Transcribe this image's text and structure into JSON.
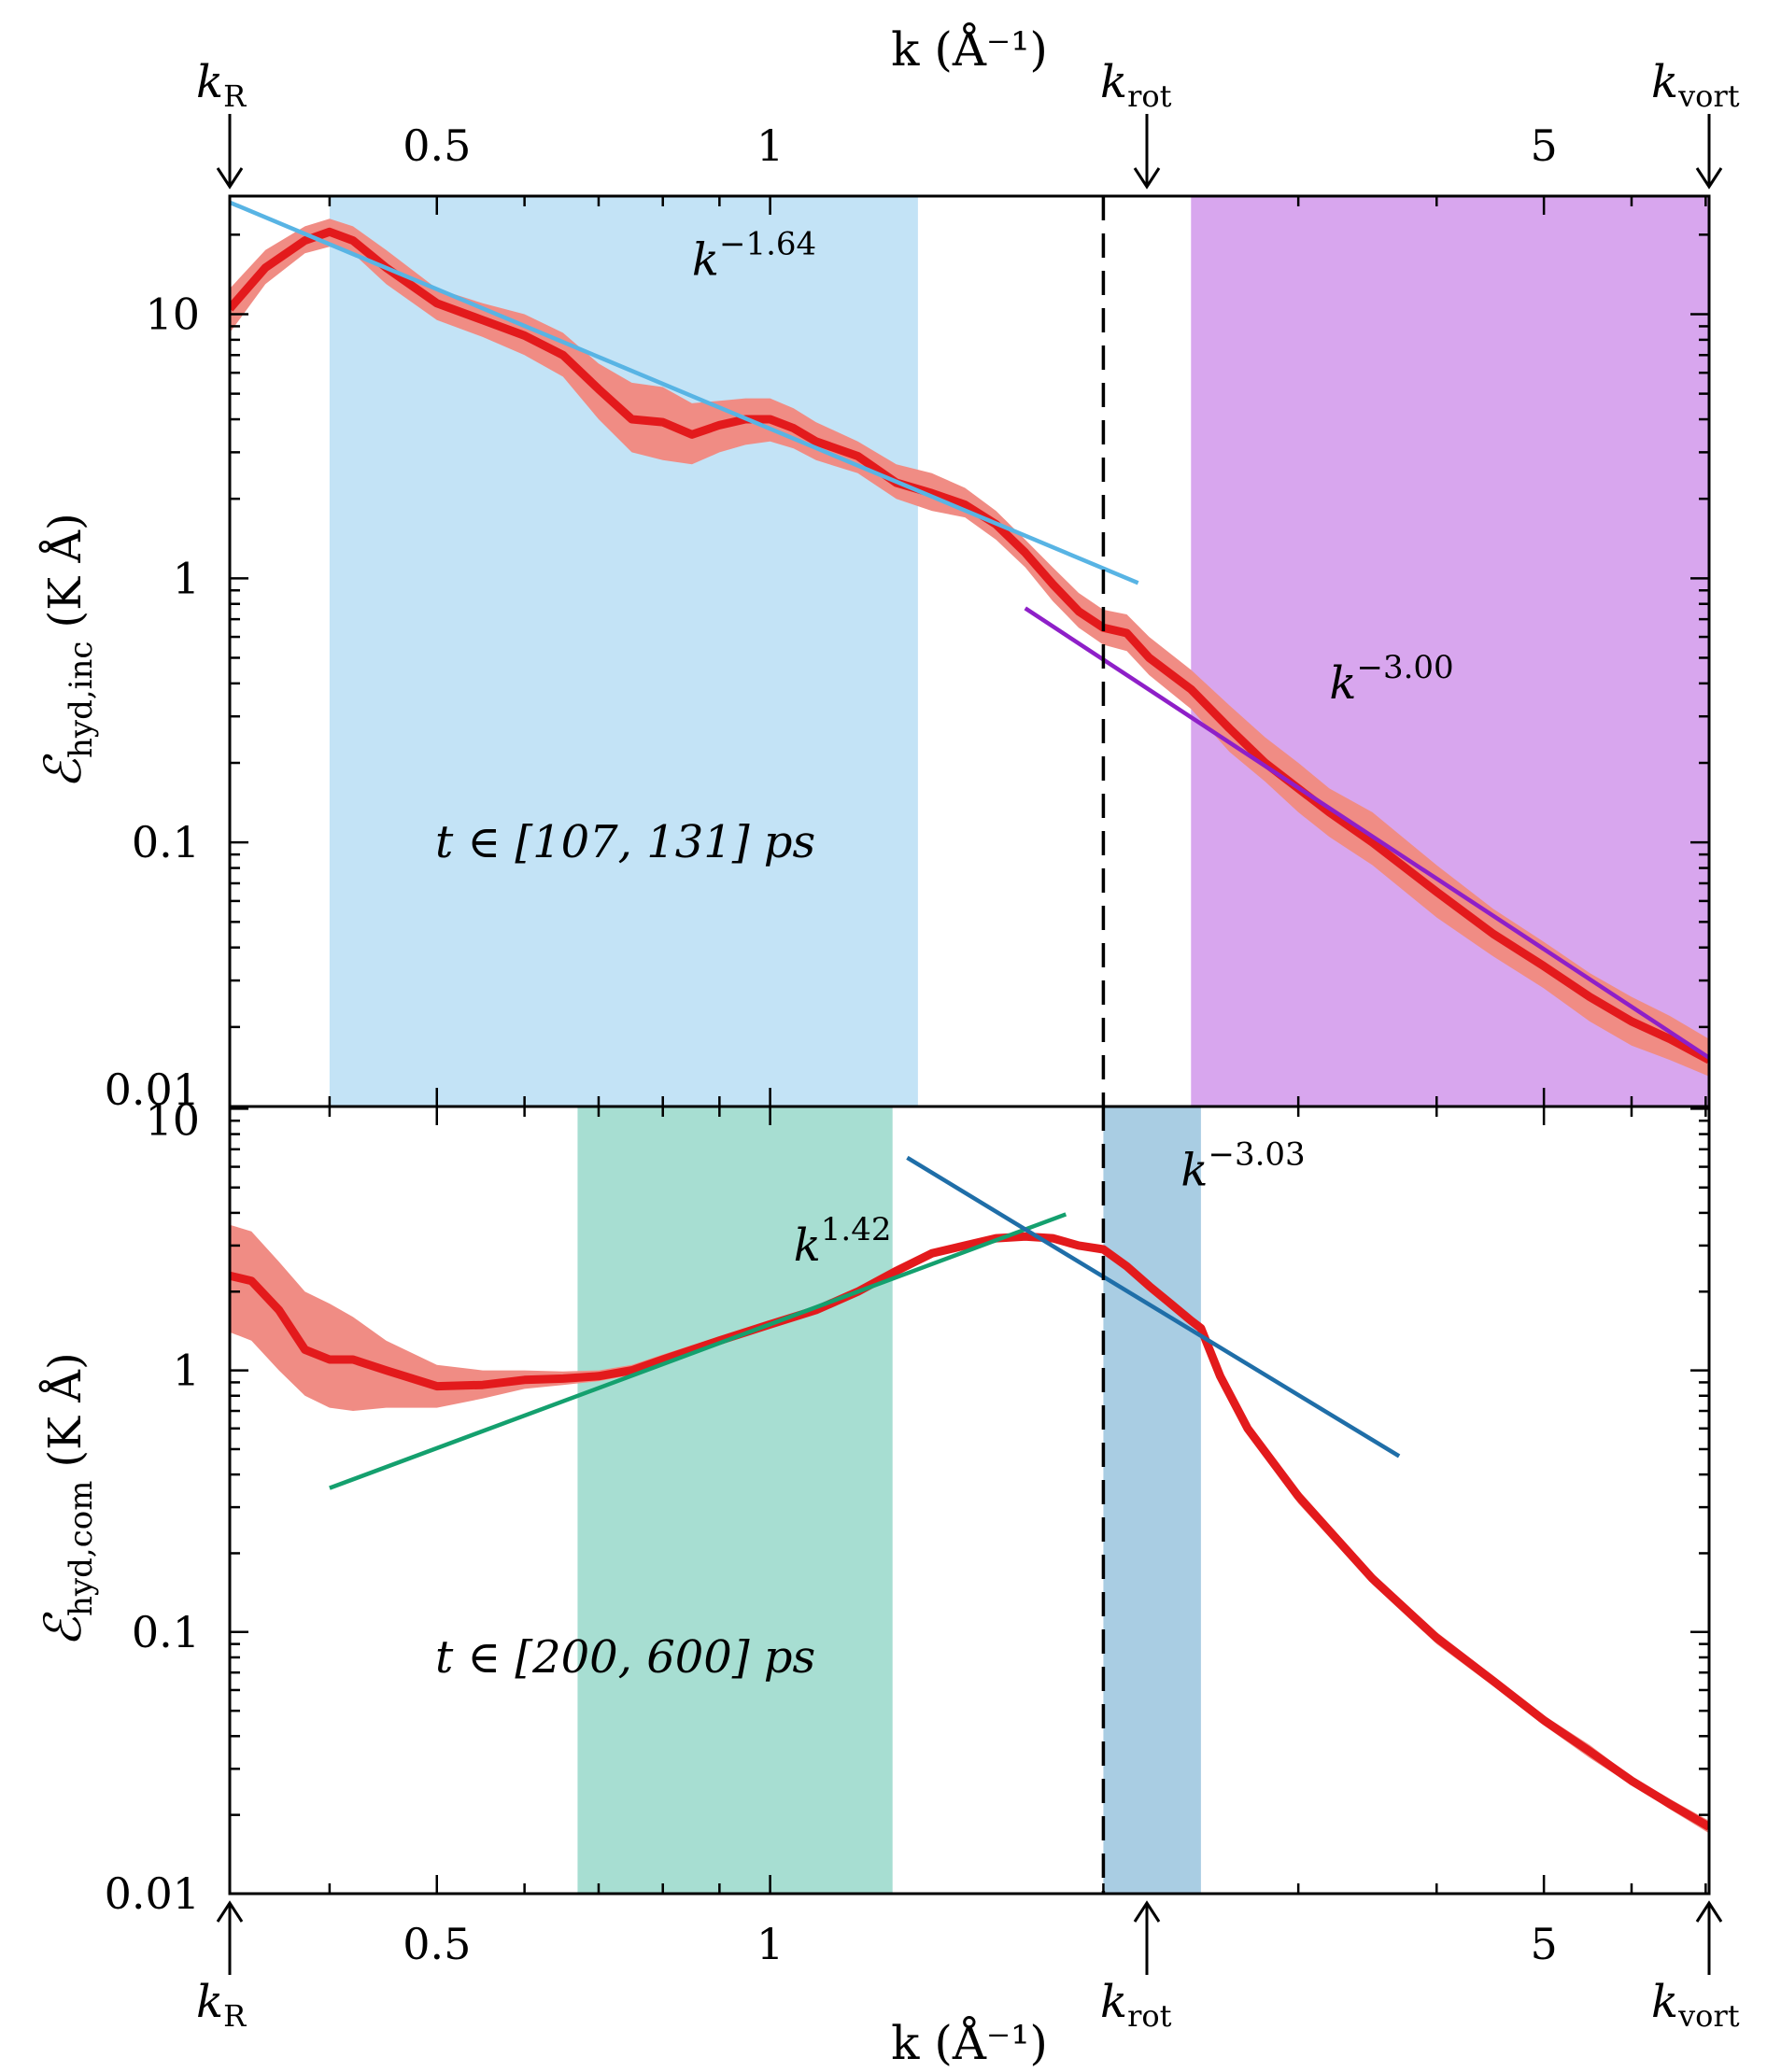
{
  "colors": {
    "curve": "#e31a1c",
    "band": "#f08c84",
    "fit_light_blue": "#58b4e4",
    "fit_purple": "#8e1fc8",
    "fit_green": "#14a06e",
    "fit_dark_blue": "#1f6ea8",
    "region_light_blue": "#c3e3f6",
    "region_purple": "#d8a6ee",
    "region_green": "#a7ded2",
    "region_dark_blue": "#a9cde3",
    "axis": "#000000"
  },
  "labels": {
    "x_axis_title": "k (Å⁻¹)",
    "k_R": "k",
    "k_R_sub": "R",
    "k_rot": "k",
    "k_rot_sub": "rot",
    "k_vort": "k",
    "k_vort_sub": "vort"
  },
  "chart_data": [
    {
      "type": "line",
      "panel": "top",
      "xscale": "log",
      "yscale": "log",
      "xlim": [
        0.325,
        7.05
      ],
      "ylim": [
        0.01,
        28
      ],
      "xlabel": "k (Å⁻¹)",
      "ylabel_main": "ℰ",
      "ylabel_sub": "hyd,inc",
      "ylabel_unit": "(K Å)",
      "x_tick_labels": [
        {
          "v": 0.5,
          "label": "0.5"
        },
        {
          "v": 1,
          "label": "1"
        },
        {
          "v": 5,
          "label": "5"
        }
      ],
      "y_tick_labels": [
        {
          "v": 0.01,
          "label": "0.01"
        },
        {
          "v": 0.1,
          "label": "0.1"
        },
        {
          "v": 1,
          "label": "1"
        },
        {
          "v": 10,
          "label": "10"
        }
      ],
      "annotation": "t ∈ [107, 131] ps",
      "regions": [
        {
          "x0": 0.4,
          "x1": 1.36,
          "color": "region_light_blue"
        },
        {
          "x0": 2.4,
          "x1": 7.05,
          "color": "region_purple"
        }
      ],
      "vline": 2.0,
      "series": [
        {
          "name": "spectrum",
          "x": [
            0.325,
            0.35,
            0.38,
            0.4,
            0.42,
            0.45,
            0.5,
            0.55,
            0.6,
            0.65,
            0.7,
            0.75,
            0.8,
            0.85,
            0.9,
            0.95,
            1.0,
            1.05,
            1.1,
            1.2,
            1.3,
            1.4,
            1.5,
            1.6,
            1.7,
            1.8,
            1.9,
            2.0,
            2.1,
            2.2,
            2.4,
            2.6,
            2.8,
            3.0,
            3.2,
            3.5,
            4.0,
            4.5,
            5.0,
            5.5,
            6.0,
            6.5,
            7.05
          ],
          "values": [
            10.5,
            15.0,
            19.0,
            20.5,
            19.0,
            15.0,
            11.0,
            9.5,
            8.3,
            7.0,
            5.2,
            4.0,
            3.9,
            3.5,
            3.8,
            4.0,
            4.0,
            3.7,
            3.3,
            2.9,
            2.3,
            2.1,
            1.9,
            1.6,
            1.25,
            0.95,
            0.75,
            0.65,
            0.62,
            0.5,
            0.38,
            0.27,
            0.2,
            0.16,
            0.13,
            0.1,
            0.065,
            0.045,
            0.034,
            0.026,
            0.021,
            0.018,
            0.015
          ],
          "band_lower": [
            8.5,
            13.0,
            17.0,
            18.0,
            17.0,
            13.0,
            9.5,
            8.2,
            7.0,
            5.8,
            4.0,
            3.0,
            2.8,
            2.7,
            3.0,
            3.2,
            3.3,
            3.1,
            2.8,
            2.5,
            2.0,
            1.8,
            1.7,
            1.4,
            1.1,
            0.82,
            0.65,
            0.56,
            0.53,
            0.43,
            0.32,
            0.22,
            0.17,
            0.13,
            0.105,
            0.082,
            0.052,
            0.037,
            0.028,
            0.021,
            0.017,
            0.015,
            0.013
          ],
          "band_upper": [
            12.5,
            17.5,
            21.5,
            23.0,
            21.5,
            17.5,
            12.5,
            11.0,
            10.0,
            8.5,
            6.5,
            5.5,
            5.3,
            4.6,
            4.7,
            4.8,
            4.8,
            4.4,
            3.9,
            3.3,
            2.7,
            2.5,
            2.2,
            1.8,
            1.4,
            1.1,
            0.88,
            0.76,
            0.73,
            0.6,
            0.45,
            0.33,
            0.25,
            0.2,
            0.16,
            0.13,
            0.082,
            0.056,
            0.042,
            0.032,
            0.026,
            0.022,
            0.018
          ]
        }
      ],
      "fits": [
        {
          "label": "k",
          "exponent": "−1.64",
          "x": [
            0.325,
            2.15
          ],
          "values": [
            26.5,
            0.96
          ],
          "color": "fit_light_blue",
          "label_v": [
            0.85,
            16
          ]
        },
        {
          "label": "k",
          "exponent": "−3.00",
          "x": [
            1.7,
            7.05
          ],
          "values": [
            0.77,
            0.0153
          ],
          "color": "fit_purple",
          "label_v": [
            3.2,
            0.4
          ]
        }
      ]
    },
    {
      "type": "line",
      "panel": "bottom",
      "xscale": "log",
      "yscale": "log",
      "xlim": [
        0.325,
        7.05
      ],
      "ylim": [
        0.01,
        10.2
      ],
      "xlabel": "k (Å⁻¹)",
      "ylabel_main": "ℰ",
      "ylabel_sub": "hyd,com",
      "ylabel_unit": "(K Å)",
      "x_tick_labels": [
        {
          "v": 0.5,
          "label": "0.5"
        },
        {
          "v": 1,
          "label": "1"
        },
        {
          "v": 5,
          "label": "5"
        }
      ],
      "y_tick_labels": [
        {
          "v": 0.01,
          "label": "0.01"
        },
        {
          "v": 0.1,
          "label": "0.1"
        },
        {
          "v": 1,
          "label": "1"
        },
        {
          "v": 10,
          "label": "10"
        }
      ],
      "annotation": "t ∈ [200, 600] ps",
      "regions": [
        {
          "x0": 0.67,
          "x1": 1.29,
          "color": "region_green"
        },
        {
          "x0": 2.0,
          "x1": 2.45,
          "color": "region_dark_blue"
        }
      ],
      "vline": 2.0,
      "series": [
        {
          "name": "spectrum",
          "x": [
            0.325,
            0.34,
            0.36,
            0.38,
            0.4,
            0.42,
            0.45,
            0.5,
            0.55,
            0.6,
            0.65,
            0.7,
            0.75,
            0.8,
            0.9,
            1.0,
            1.1,
            1.2,
            1.3,
            1.4,
            1.5,
            1.6,
            1.7,
            1.8,
            1.9,
            2.0,
            2.1,
            2.2,
            2.3,
            2.4,
            2.45,
            2.55,
            2.7,
            3.0,
            3.5,
            4.0,
            4.5,
            5.0,
            5.5,
            6.0,
            6.5,
            7.05
          ],
          "values": [
            2.3,
            2.2,
            1.7,
            1.2,
            1.1,
            1.1,
            1.0,
            0.87,
            0.88,
            0.92,
            0.93,
            0.95,
            1.0,
            1.1,
            1.3,
            1.5,
            1.7,
            2.0,
            2.4,
            2.8,
            3.0,
            3.2,
            3.25,
            3.2,
            3.0,
            2.9,
            2.5,
            2.1,
            1.8,
            1.55,
            1.45,
            0.95,
            0.6,
            0.33,
            0.16,
            0.095,
            0.065,
            0.046,
            0.035,
            0.027,
            0.022,
            0.018
          ],
          "band_lower": [
            1.4,
            1.3,
            1.0,
            0.8,
            0.72,
            0.7,
            0.72,
            0.72,
            0.78,
            0.85,
            0.88,
            0.91,
            0.96,
            1.06,
            1.25,
            1.45,
            1.65,
            1.95,
            2.3,
            2.7,
            2.9,
            3.1,
            3.15,
            3.1,
            2.9,
            2.8,
            2.4,
            2.0,
            1.72,
            1.48,
            1.38,
            0.91,
            0.57,
            0.31,
            0.152,
            0.09,
            0.062,
            0.044,
            0.033,
            0.026,
            0.021,
            0.017
          ],
          "band_upper": [
            3.6,
            3.4,
            2.6,
            2.0,
            1.8,
            1.6,
            1.3,
            1.05,
            1.0,
            1.0,
            0.99,
            1.0,
            1.05,
            1.15,
            1.35,
            1.55,
            1.75,
            2.05,
            2.5,
            2.9,
            3.1,
            3.3,
            3.35,
            3.3,
            3.1,
            3.0,
            2.6,
            2.2,
            1.88,
            1.62,
            1.52,
            1.0,
            0.63,
            0.35,
            0.168,
            0.1,
            0.068,
            0.048,
            0.037,
            0.028,
            0.023,
            0.019
          ]
        }
      ],
      "fits": [
        {
          "label": "k",
          "exponent": "1.42",
          "x": [
            0.4,
            1.85
          ],
          "values": [
            0.355,
            3.95
          ],
          "color": "fit_green",
          "label_v": [
            1.05,
            3.0
          ]
        },
        {
          "label": "k",
          "exponent": "−3.03",
          "x": [
            1.33,
            3.7
          ],
          "values": [
            6.5,
            0.47
          ],
          "color": "fit_dark_blue",
          "label_v": [
            2.35,
            5.8
          ]
        }
      ]
    }
  ]
}
